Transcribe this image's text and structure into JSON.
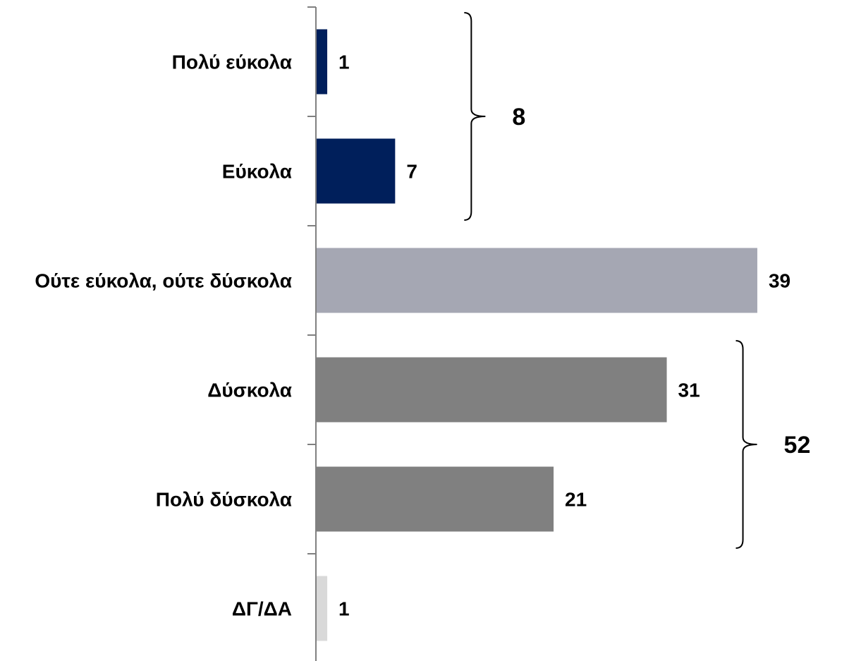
{
  "chart_data": {
    "type": "bar",
    "orientation": "horizontal",
    "categories": [
      "Πολύ εύκολα",
      "Εύκολα",
      "Ούτε εύκολα, ούτε δύσκολα",
      "Δύσκολα",
      "Πολύ δύσκολα",
      "ΔΓ/ΔΑ"
    ],
    "values": [
      1,
      7,
      39,
      31,
      21,
      1
    ],
    "colors": [
      "#001f5b",
      "#001f5b",
      "#a5a7b3",
      "#808080",
      "#808080",
      "#d9d9d9"
    ],
    "title": "",
    "xlabel": "",
    "ylabel": "",
    "xlim": [
      0,
      40
    ],
    "grid": false,
    "annotations": [
      {
        "type": "bracket",
        "from_category": 0,
        "to_category": 1,
        "label": "8"
      },
      {
        "type": "bracket",
        "from_category": 3,
        "to_category": 4,
        "label": "52"
      }
    ]
  }
}
